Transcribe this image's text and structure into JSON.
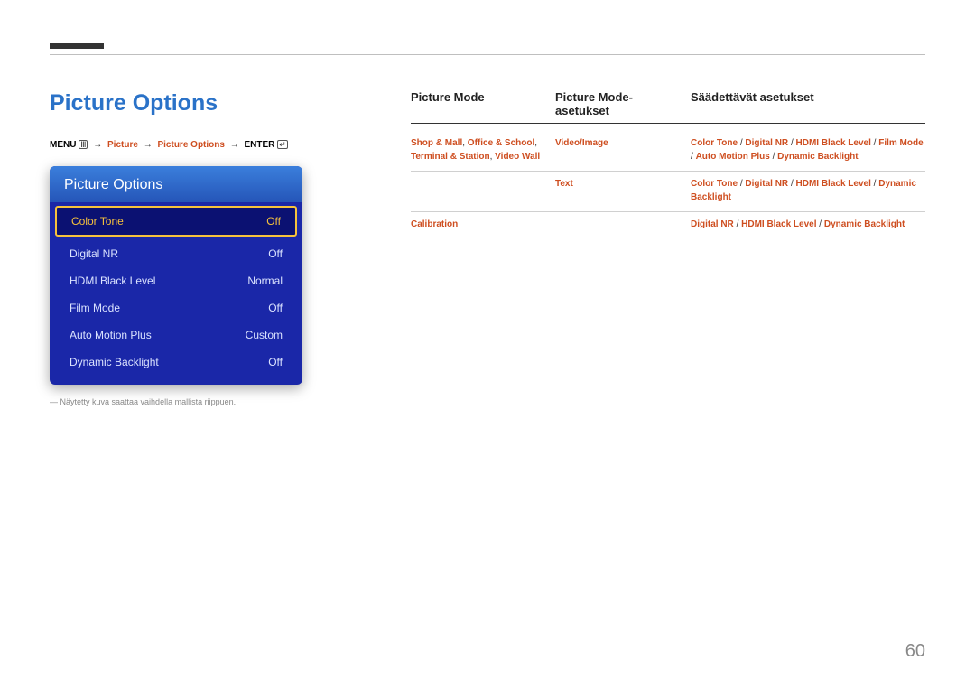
{
  "pageTitle": "Picture Options",
  "breadcrumb": {
    "menu": "MENU",
    "picture": "Picture",
    "pictureOptions": "Picture Options",
    "enter": "ENTER"
  },
  "osd": {
    "header": "Picture Options",
    "rows": [
      {
        "label": "Color Tone",
        "value": "Off",
        "selected": true
      },
      {
        "label": "Digital NR",
        "value": "Off",
        "selected": false
      },
      {
        "label": "HDMI Black Level",
        "value": "Normal",
        "selected": false
      },
      {
        "label": "Film Mode",
        "value": "Off",
        "selected": false
      },
      {
        "label": "Auto Motion Plus",
        "value": "Custom",
        "selected": false
      },
      {
        "label": "Dynamic Backlight",
        "value": "Off",
        "selected": false
      }
    ]
  },
  "footnote": "― Näytetty kuva saattaa vaihdella mallista riippuen.",
  "table": {
    "headers": {
      "col1": "Picture Mode",
      "col2": "Picture Mode-asetukset",
      "col3": "Säädettävät asetukset"
    },
    "rows": [
      {
        "col1_html": "<span class='orange-txt'>Shop & Mall</span><span class='sep'>, </span><span class='orange-txt'>Office & School</span><span class='sep'>, </span><span class='orange-txt'>Terminal & Station</span><span class='sep'>, </span><span class='orange-txt'>Video Wall</span>",
        "col2_html": "<span class='orange-txt'>Video/Image</span>",
        "col3_html": "<span class='orange-txt'>Color Tone</span> <span class='sep'>/</span> <span class='orange-txt'>Digital NR</span> <span class='sep'>/</span> <span class='orange-txt'>HDMI Black Level</span> <span class='sep'>/</span> <span class='orange-txt'>Film Mode</span> <span class='sep'>/</span> <span class='orange-txt'>Auto Motion Plus</span> <span class='sep'>/</span> <span class='orange-txt'>Dynamic Backlight</span>"
      },
      {
        "col1_html": "",
        "col2_html": "<span class='orange-txt'>Text</span>",
        "col3_html": "<span class='orange-txt'>Color Tone</span> <span class='sep'>/</span> <span class='orange-txt'>Digital NR</span> <span class='sep'>/</span> <span class='orange-txt'>HDMI Black Level</span> <span class='sep'>/</span> <span class='orange-txt'>Dynamic Backlight</span>"
      },
      {
        "col1_html": "<span class='orange-txt'>Calibration</span>",
        "col2_html": "",
        "col3_html": "<span class='orange-txt'>Digital NR</span> <span class='sep'>/</span> <span class='orange-txt'>HDMI Black Level</span> <span class='sep'>/</span> <span class='orange-txt'>Dynamic Backlight</span>"
      }
    ]
  },
  "pageNumber": "60"
}
